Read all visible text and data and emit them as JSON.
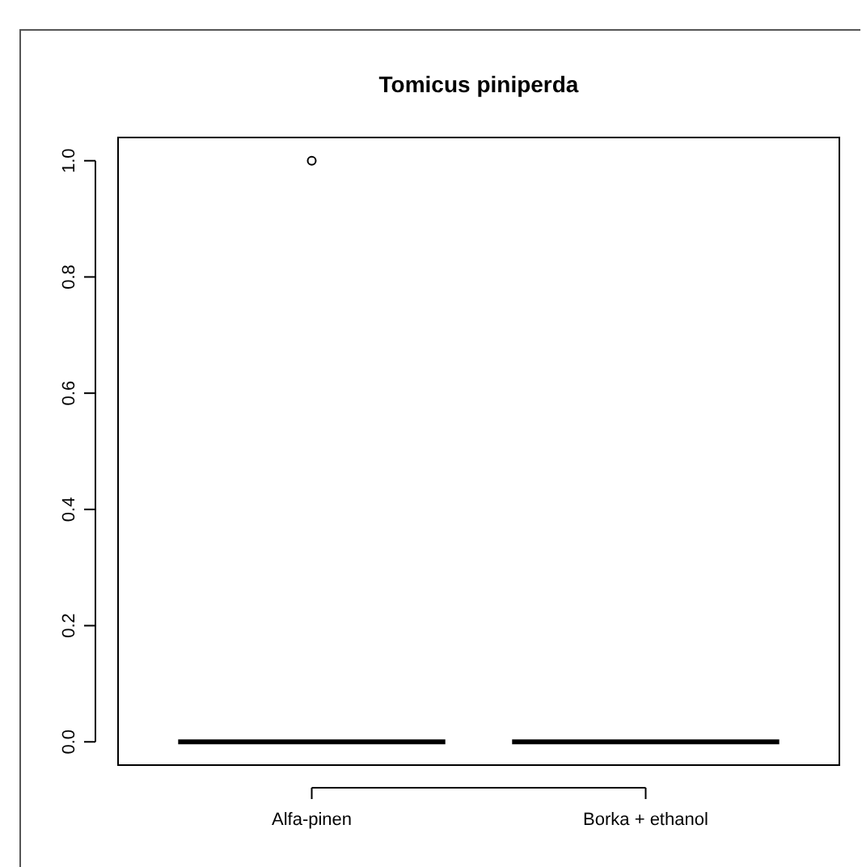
{
  "chart_data": {
    "type": "box",
    "title": "Tomicus piniperda",
    "categories": [
      "Alfa-pinen",
      "Borka + ethanol"
    ],
    "boxes": [
      {
        "low": 0,
        "q1": 0,
        "median": 0,
        "q3": 0,
        "high": 0,
        "outliers": [
          1
        ]
      },
      {
        "low": 0,
        "q1": 0,
        "median": 0,
        "q3": 0,
        "high": 0
      }
    ],
    "ylim": [
      -0.04,
      1.04
    ],
    "yticks": [
      {
        "value": 0,
        "label": "0.0"
      },
      {
        "value": 0.2,
        "label": "0.2"
      },
      {
        "value": 0.4,
        "label": "0.4"
      },
      {
        "value": 0.6,
        "label": "0.6"
      },
      {
        "value": 0.8,
        "label": "0.8"
      },
      {
        "value": 1,
        "label": "1.0"
      }
    ],
    "marker": "circle"
  }
}
